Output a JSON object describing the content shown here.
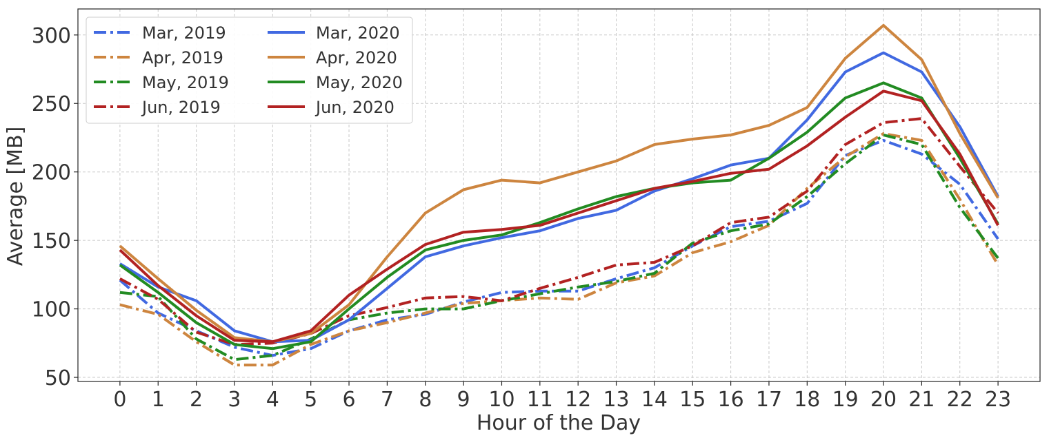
{
  "chart_data": {
    "type": "line",
    "title": "",
    "xlabel": "Hour of the Day",
    "ylabel": "Average [MB]",
    "x": [
      0,
      1,
      2,
      3,
      4,
      5,
      6,
      7,
      8,
      9,
      10,
      11,
      12,
      13,
      14,
      15,
      16,
      17,
      18,
      19,
      20,
      21,
      22,
      23
    ],
    "xlim": [
      -1.1,
      24.1
    ],
    "ylim": [
      47,
      319
    ],
    "yticks": [
      50,
      100,
      150,
      200,
      250,
      300
    ],
    "grid": true,
    "legend_position": "top-left",
    "legend_columns": 2,
    "series": [
      {
        "name": "Mar, 2019",
        "color": "#4169e1",
        "style": "dashdot",
        "values": [
          121,
          97,
          84,
          72,
          66,
          71,
          84,
          92,
          96,
          105,
          112,
          113,
          113,
          122,
          130,
          146,
          160,
          164,
          177,
          212,
          223,
          213,
          191,
          151
        ]
      },
      {
        "name": "Apr, 2019",
        "color": "#cd853f",
        "style": "dashdot",
        "values": [
          103,
          96,
          76,
          59,
          59,
          74,
          84,
          90,
          97,
          104,
          106,
          108,
          107,
          119,
          124,
          141,
          149,
          161,
          188,
          211,
          228,
          223,
          180,
          132
        ]
      },
      {
        "name": "May, 2019",
        "color": "#228b22",
        "style": "dashdot",
        "values": [
          112,
          109,
          78,
          63,
          66,
          78,
          92,
          97,
          100,
          100,
          106,
          111,
          116,
          120,
          126,
          148,
          157,
          162,
          182,
          206,
          227,
          220,
          174,
          137
        ]
      },
      {
        "name": "Jun, 2019",
        "color": "#b22222",
        "style": "dashdot",
        "values": [
          122,
          107,
          83,
          74,
          75,
          82,
          95,
          101,
          108,
          109,
          106,
          115,
          123,
          132,
          134,
          146,
          163,
          167,
          186,
          220,
          236,
          239,
          204,
          170
        ]
      },
      {
        "name": "Mar, 2020",
        "color": "#4169e1",
        "style": "solid",
        "values": [
          133,
          116,
          106,
          84,
          76,
          77,
          92,
          115,
          138,
          146,
          152,
          157,
          166,
          172,
          186,
          195,
          205,
          210,
          238,
          273,
          287,
          273,
          233,
          182
        ]
      },
      {
        "name": "Apr, 2020",
        "color": "#cd853f",
        "style": "solid",
        "values": [
          146,
          122,
          99,
          79,
          76,
          82,
          103,
          138,
          170,
          187,
          194,
          192,
          200,
          208,
          220,
          224,
          227,
          234,
          247,
          283,
          307,
          282,
          228,
          181
        ]
      },
      {
        "name": "May, 2020",
        "color": "#228b22",
        "style": "solid",
        "values": [
          132,
          112,
          90,
          74,
          71,
          76,
          100,
          123,
          143,
          150,
          154,
          163,
          173,
          182,
          188,
          192,
          194,
          210,
          229,
          254,
          265,
          254,
          210,
          162
        ]
      },
      {
        "name": "Jun, 2020",
        "color": "#b22222",
        "style": "solid",
        "values": [
          143,
          117,
          95,
          77,
          76,
          84,
          110,
          129,
          147,
          156,
          158,
          161,
          170,
          179,
          188,
          193,
          199,
          202,
          219,
          240,
          259,
          252,
          213,
          161
        ]
      }
    ]
  }
}
